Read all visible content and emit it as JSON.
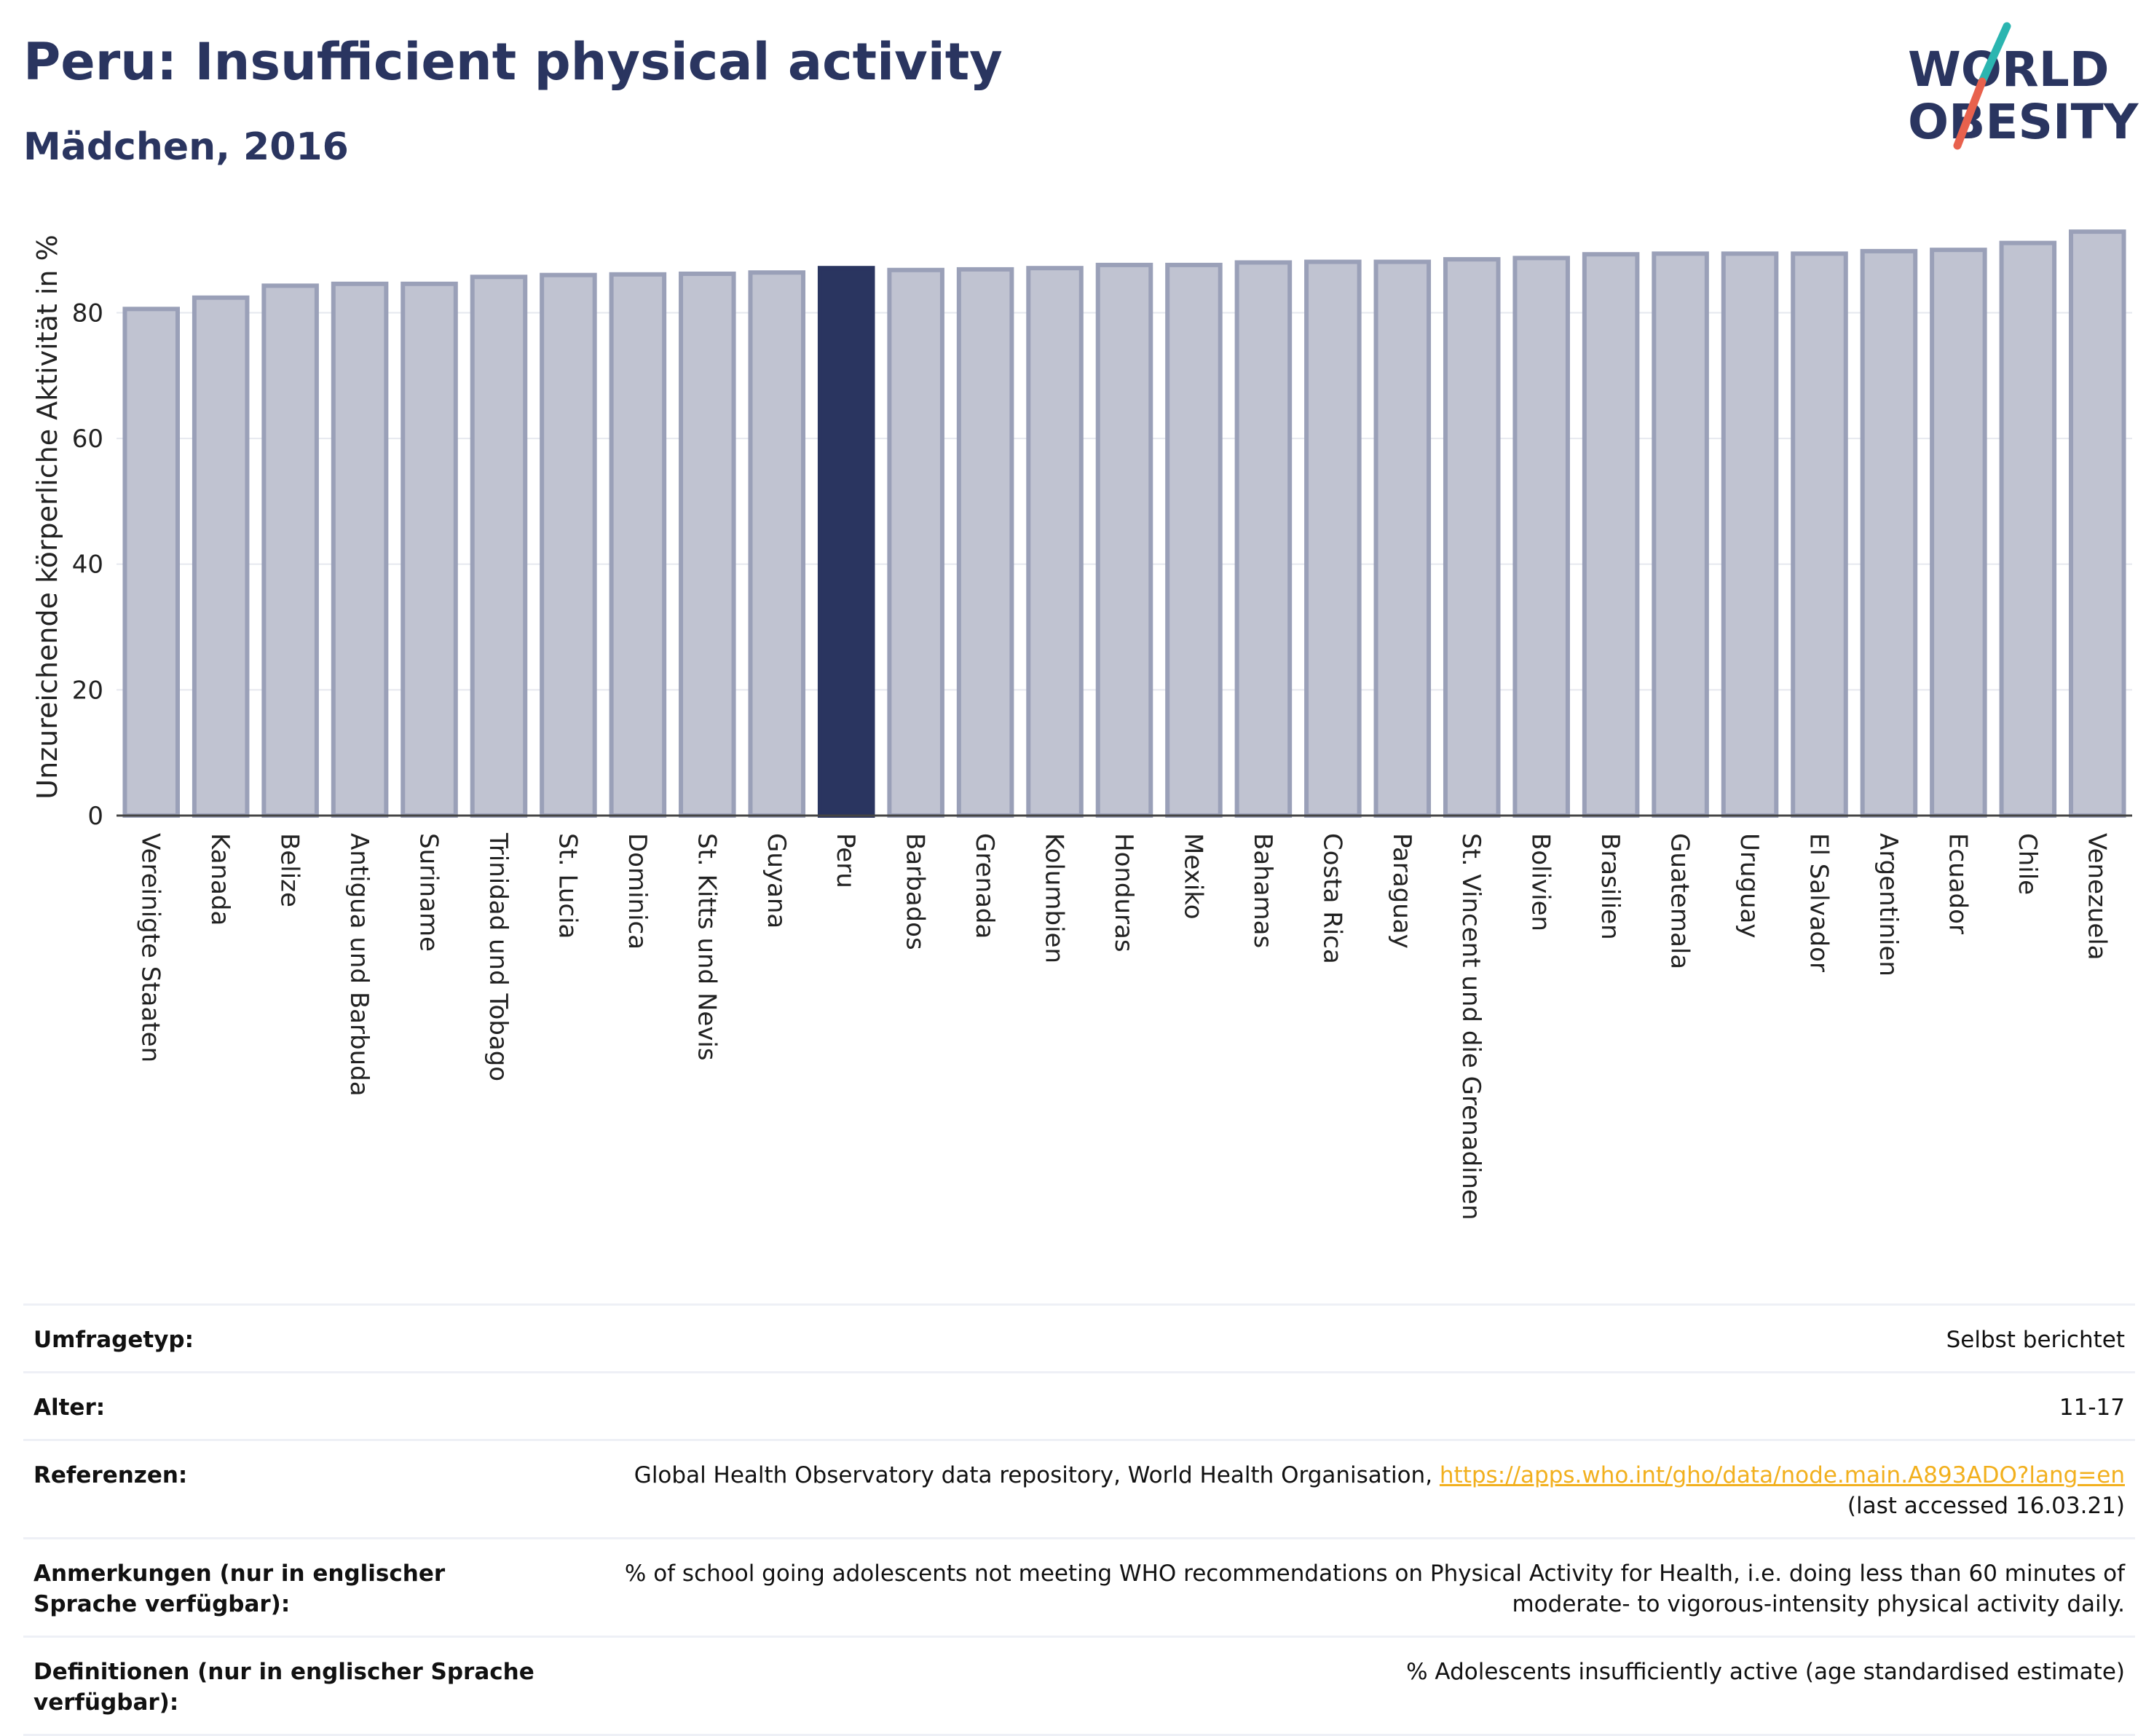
{
  "header": {
    "title": "Peru: Insufficient physical activity",
    "subtitle": "Mädchen, 2016"
  },
  "logo": {
    "line1": "WORLD",
    "line2": "OBESITY",
    "slash_top_color": "#2bb5b0",
    "slash_bottom_color": "#e8614d"
  },
  "colors": {
    "bar": "#c0c3d1",
    "bar_stroke": "#9aa0b8",
    "highlight": "#2a3560",
    "text": "#2a3560",
    "link": "#f2b01e"
  },
  "chart_data": {
    "type": "bar",
    "title": "Peru: Insufficient physical activity",
    "subtitle": "Mädchen, 2016",
    "xlabel": "",
    "ylabel": "Unzureichende körperliche Aktivität in %",
    "ylim": [
      0,
      95
    ],
    "yticks": [
      0,
      20,
      40,
      60,
      80
    ],
    "grid": true,
    "highlight": "Peru",
    "categories": [
      "Vereinigte Staaten",
      "Kanada",
      "Belize",
      "Antigua und Barbuda",
      "Suriname",
      "Trinidad und Tobago",
      "St. Lucia",
      "Dominica",
      "St. Kitts und Nevis",
      "Guyana",
      "Peru",
      "Barbados",
      "Grenada",
      "Kolumbien",
      "Honduras",
      "Mexiko",
      "Bahamas",
      "Costa Rica",
      "Paraguay",
      "St. Vincent und die Grenadinen",
      "Bolivien",
      "Brasilien",
      "Guatemala",
      "Uruguay",
      "El Salvador",
      "Argentinien",
      "Ecuador",
      "Chile",
      "Venezuela"
    ],
    "values": [
      80.6,
      82.4,
      84.3,
      84.6,
      84.6,
      85.7,
      86.0,
      86.1,
      86.2,
      86.4,
      87.1,
      86.8,
      86.9,
      87.1,
      87.6,
      87.6,
      88.0,
      88.1,
      88.1,
      88.5,
      88.7,
      89.3,
      89.4,
      89.4,
      89.4,
      89.8,
      90.0,
      91.1,
      92.9
    ]
  },
  "info": [
    {
      "label": "Umfragetyp:",
      "value": "Selbst berichtet"
    },
    {
      "label": "Alter:",
      "value": "11-17"
    },
    {
      "label": "Referenzen:",
      "value": "Global Health Observatory data repository, World Health Organisation,",
      "link": "https://apps.who.int/gho/data/node.main.A893ADO?lang=en",
      "value2": "(last accessed 16.03.21)"
    },
    {
      "label": "Anmerkungen (nur in englischer Sprache verfügbar):",
      "value": "% of school going adolescents not meeting WHO recommendations on Physical Activity for Health, i.e. doing less than 60 minutes of moderate- to vigorous-intensity physical activity daily."
    },
    {
      "label": "Definitionen (nur in englischer Sprache verfügbar):",
      "value": "% Adolescents insufficiently active (age standardised estimate)"
    }
  ]
}
